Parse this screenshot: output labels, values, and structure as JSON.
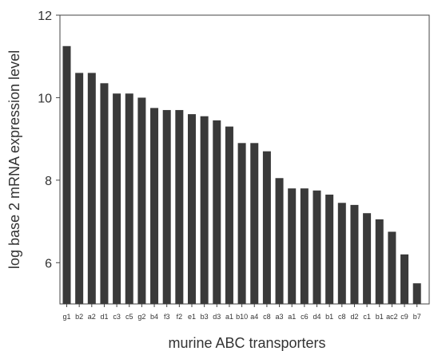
{
  "chart_data": {
    "type": "bar",
    "xlabel": "murine ABC transporters",
    "ylabel": "log base 2 mRNA expression level",
    "ylim": [
      5,
      12
    ],
    "yticks": [
      6,
      8,
      10,
      12
    ],
    "grid": false,
    "legend": "none",
    "bar_color": "#3a3a3a",
    "categories": [
      "g1",
      "b2",
      "a2",
      "d1",
      "c3",
      "c5",
      "g2",
      "b4",
      "f3",
      "f2",
      "e1",
      "b3",
      "d3",
      "a1",
      "b10",
      "a4",
      "c8",
      "a3",
      "a1",
      "c6",
      "d4",
      "b1",
      "c8",
      "d2",
      "c1",
      "b1",
      "ac2",
      "c9",
      "b7"
    ],
    "values": [
      11.25,
      10.6,
      10.6,
      10.35,
      10.1,
      10.1,
      10.0,
      9.75,
      9.7,
      9.7,
      9.6,
      9.55,
      9.45,
      9.3,
      8.9,
      8.9,
      8.7,
      8.05,
      7.8,
      7.8,
      7.75,
      7.65,
      7.45,
      7.4,
      7.2,
      7.05,
      6.75,
      6.2,
      5.5
    ]
  }
}
